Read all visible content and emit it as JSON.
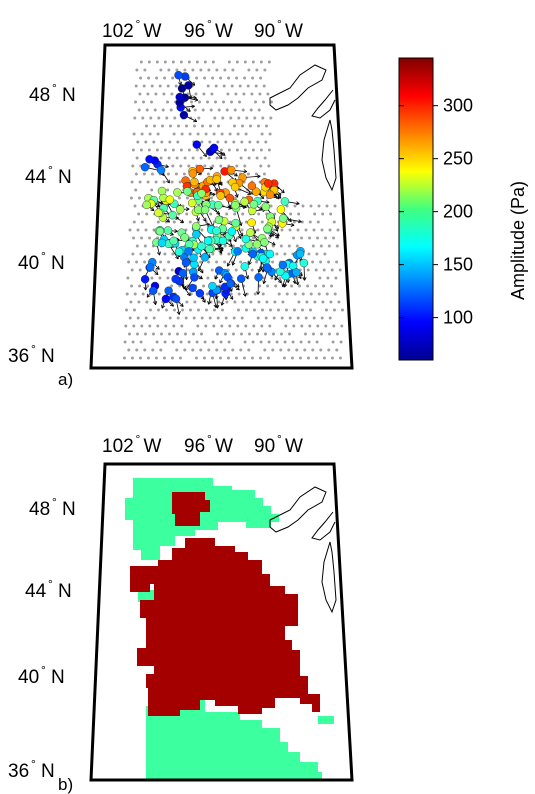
{
  "panel_a": {
    "label": "a)",
    "lon_ticks": [
      {
        "num": "102",
        "deg": "°",
        "hem": "W"
      },
      {
        "num": "96",
        "deg": "°",
        "hem": "W"
      },
      {
        "num": "90",
        "deg": "°",
        "hem": "W"
      }
    ],
    "lat_ticks": [
      {
        "num": "48",
        "deg": "°",
        "hem": "N"
      },
      {
        "num": "44",
        "deg": "°",
        "hem": "N"
      },
      {
        "num": "40",
        "deg": "°",
        "hem": "N"
      },
      {
        "num": "36",
        "deg": "°",
        "hem": "N"
      }
    ]
  },
  "panel_b": {
    "label": "b)",
    "lon_ticks": [
      {
        "num": "102",
        "deg": "°",
        "hem": "W"
      },
      {
        "num": "96",
        "deg": "°",
        "hem": "W"
      },
      {
        "num": "90",
        "deg": "°",
        "hem": "W"
      }
    ],
    "lat_ticks": [
      {
        "num": "48",
        "deg": "°",
        "hem": "N"
      },
      {
        "num": "44",
        "deg": "°",
        "hem": "N"
      },
      {
        "num": "40",
        "deg": "°",
        "hem": "N"
      },
      {
        "num": "36",
        "deg": "°",
        "hem": "N"
      }
    ],
    "colors": {
      "region_a": "#a50000",
      "region_b": "#3cffa0"
    }
  },
  "colorbar": {
    "title": "Amplitude (Pa)",
    "ticks": [
      "300",
      "250",
      "200",
      "150",
      "100"
    ],
    "range": [
      60,
      345
    ],
    "colormap": "jet"
  }
}
